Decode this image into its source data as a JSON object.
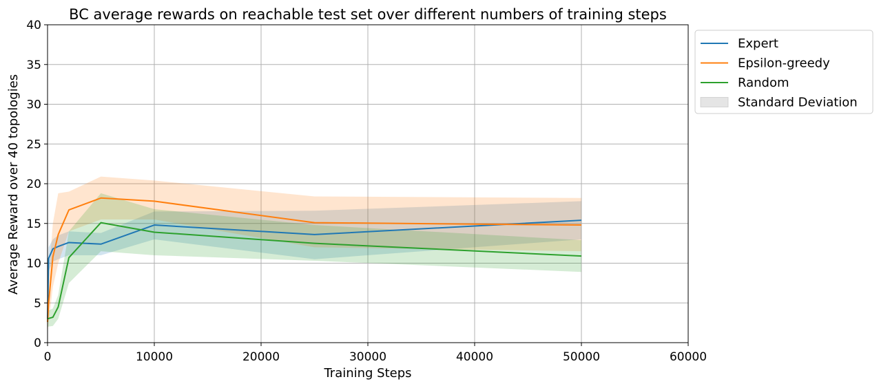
{
  "chart_data": {
    "type": "line",
    "title": "BC average rewards on reachable test set over different numbers of training steps",
    "xlabel": "Training Steps",
    "ylabel": "Average Reward over 40 topologies",
    "xlim": [
      0,
      60000
    ],
    "ylim": [
      0,
      40
    ],
    "xticks": [
      0,
      10000,
      20000,
      30000,
      40000,
      50000,
      60000
    ],
    "yticks": [
      0,
      5,
      10,
      15,
      20,
      25,
      30,
      35,
      40
    ],
    "grid": true,
    "legend_position": "outside-top-right",
    "legend_std_label": "Standard Deviation",
    "legend_std_color": "#bfbfbf",
    "series": [
      {
        "name": "Expert",
        "color": "#1f77b4",
        "x": [
          0,
          100,
          500,
          1000,
          2000,
          5000,
          10000,
          25000,
          50000
        ],
        "y": [
          3.0,
          10.6,
          11.8,
          12.1,
          12.6,
          12.4,
          14.8,
          13.6,
          15.4
        ],
        "y_lower": [
          2.2,
          9.0,
          10.2,
          10.5,
          11.0,
          11.0,
          13.0,
          10.5,
          13.0
        ],
        "y_upper": [
          4.0,
          12.0,
          13.0,
          13.5,
          14.0,
          13.8,
          16.5,
          16.6,
          17.8
        ]
      },
      {
        "name": "Epsilon-greedy",
        "color": "#ff7f0e",
        "x": [
          0,
          100,
          500,
          1000,
          2000,
          5000,
          10000,
          25000,
          50000
        ],
        "y": [
          2.6,
          5.0,
          10.8,
          13.6,
          16.7,
          18.2,
          17.8,
          15.1,
          14.8
        ],
        "y_lower": [
          1.2,
          2.5,
          7.0,
          10.0,
          14.0,
          15.5,
          15.5,
          12.0,
          11.5
        ],
        "y_upper": [
          4.0,
          8.0,
          15.0,
          18.8,
          19.0,
          20.9,
          20.4,
          18.4,
          18.2
        ]
      },
      {
        "name": "Random",
        "color": "#2ca02c",
        "x": [
          0,
          500,
          1000,
          2000,
          5000,
          10000,
          25000,
          50000
        ],
        "y": [
          3.0,
          3.2,
          4.5,
          10.7,
          15.1,
          13.9,
          12.5,
          10.9
        ],
        "y_lower": [
          2.0,
          2.1,
          3.0,
          7.5,
          11.5,
          11.0,
          10.3,
          8.9
        ],
        "y_upper": [
          4.0,
          4.3,
          6.0,
          14.0,
          18.8,
          16.8,
          14.8,
          12.9
        ]
      }
    ]
  }
}
